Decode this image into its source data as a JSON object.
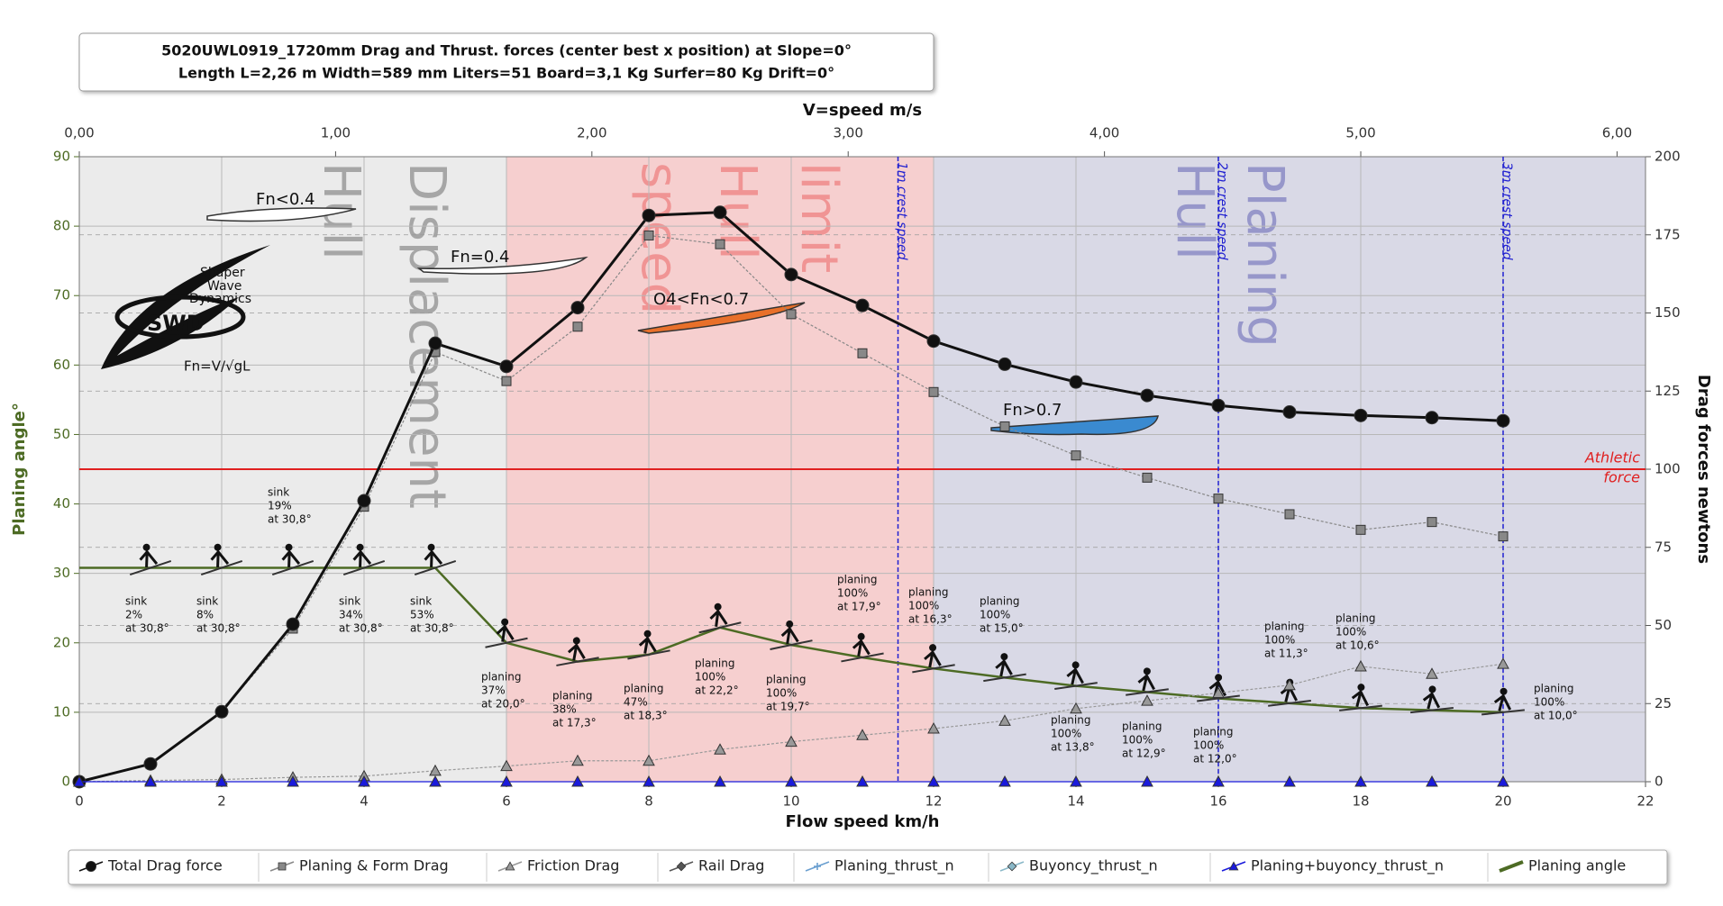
{
  "chart_data": {
    "type": "line",
    "title": "5020UWL0919_1720mm Drag and  Thrust. forces (center best x position) at  Slope=0°",
    "subtitle": "Length L=2,26 m Width=589 mm Liters=51 Board=3,1 Kg Surfer=80 Kg Drift=0°",
    "x_label": "Flow speed km/h",
    "x2_label": "V=speed m/s",
    "y_label": "Planing angle°",
    "y2_label": "Drag forces newtons",
    "xlim": [
      0,
      22
    ],
    "xticks": [
      0,
      2,
      4,
      6,
      8,
      10,
      12,
      14,
      16,
      18,
      20,
      22
    ],
    "x2lim": [
      0,
      6.111
    ],
    "x2ticks": [
      {
        "value": 0,
        "label": "0,00"
      },
      {
        "value": 1,
        "label": "1,00"
      },
      {
        "value": 2,
        "label": "2,00"
      },
      {
        "value": 3,
        "label": "3,00"
      },
      {
        "value": 4,
        "label": "4,00"
      },
      {
        "value": 5,
        "label": "5,00"
      },
      {
        "value": 6,
        "label": "6,00"
      }
    ],
    "ylim": [
      0,
      90
    ],
    "yticks": [
      0,
      10,
      20,
      30,
      40,
      50,
      60,
      70,
      80,
      90
    ],
    "y2lim": [
      0,
      200
    ],
    "y2ticks": [
      0,
      25,
      50,
      75,
      100,
      125,
      150,
      175,
      200
    ],
    "grid": true,
    "x": [
      0,
      1,
      2,
      3,
      4,
      5,
      6,
      7,
      8,
      9,
      10,
      11,
      12,
      13,
      14,
      15,
      16,
      17,
      18,
      19,
      20
    ],
    "series": [
      {
        "name": "Total Drag force",
        "color": "#111111",
        "marker": "circle",
        "axis": "y2",
        "values": [
          0,
          5.7,
          22.4,
          50.4,
          89.9,
          140.3,
          132.9,
          151.7,
          181.2,
          182.2,
          162.3,
          152.4,
          141,
          133.6,
          127.9,
          123.6,
          120.4,
          118.3,
          117.2,
          116.5,
          115.5
        ]
      },
      {
        "name": "Planing & Form Drag",
        "color": "#888888",
        "marker": "square",
        "axis": "y2",
        "values": [
          0,
          5.7,
          22.4,
          49,
          88,
          137.5,
          128.2,
          145.6,
          174.8,
          172,
          149.6,
          137.1,
          124.7,
          113.7,
          104.4,
          97.3,
          90.6,
          85.6,
          80.6,
          83.1,
          78.5
        ]
      },
      {
        "name": "Friction Drag",
        "color": "#999999",
        "marker": "triangle",
        "axis": "y2",
        "values": [
          0,
          0.4,
          0.7,
          1.4,
          1.8,
          3.5,
          5,
          6.7,
          6.7,
          10.3,
          12.8,
          14.9,
          17,
          19.5,
          23.4,
          25.9,
          28.4,
          30.9,
          36.9,
          34.5,
          37.7
        ]
      },
      {
        "name": "Rail Drag",
        "color": "#555555",
        "marker": "diamond",
        "axis": "y2",
        "values": [
          null,
          null,
          null,
          null,
          null,
          null,
          null,
          null,
          null,
          null,
          null,
          null,
          null,
          null,
          null,
          null,
          null,
          null,
          null,
          null,
          null
        ]
      },
      {
        "name": "Planing_thrust_n",
        "color": "#6a9fd0",
        "marker": "cross",
        "axis": "y2",
        "values": [
          null,
          null,
          null,
          null,
          null,
          null,
          null,
          null,
          null,
          null,
          null,
          null,
          null,
          null,
          null,
          null,
          null,
          null,
          null,
          null,
          null
        ]
      },
      {
        "name": "Buyoncy_thrust_n",
        "color": "#8ab8c8",
        "marker": "diamond",
        "axis": "y2",
        "values": [
          null,
          null,
          null,
          null,
          null,
          null,
          null,
          null,
          null,
          null,
          null,
          null,
          null,
          null,
          null,
          null,
          null,
          null,
          null,
          null,
          null
        ]
      },
      {
        "name": "Planing+buyoncy_thrust_n",
        "color": "#1a1adc",
        "marker": "triangle",
        "axis": "y2",
        "values": [
          0,
          0,
          0,
          0,
          0,
          0,
          0,
          0,
          0,
          0,
          0,
          0,
          0,
          0,
          0,
          0,
          0,
          0,
          0,
          0,
          0
        ]
      },
      {
        "name": "Planing angle",
        "color": "#4d6b24",
        "marker": "none",
        "axis": "y",
        "values": [
          30.8,
          30.8,
          30.8,
          30.8,
          30.8,
          30.8,
          20,
          17.3,
          18.3,
          22.2,
          19.7,
          17.9,
          16.3,
          15,
          13.8,
          12.9,
          12,
          11.3,
          10.6,
          10.3,
          10
        ]
      }
    ],
    "regions": [
      {
        "from": 0,
        "to": 6,
        "color": "#ebebeb"
      },
      {
        "from": 6,
        "to": 12,
        "color": "#f6cfcf"
      },
      {
        "from": 12,
        "to": 22,
        "color": "#d9d9e6"
      }
    ],
    "region_labels": [
      "Displacement",
      "Hull",
      "limit",
      "Hull",
      "speed",
      "Planing",
      "Hull"
    ],
    "crest_lines": [
      {
        "x": 11.5,
        "label": "1m crest speed"
      },
      {
        "x": 16,
        "label": "2m crest speed"
      },
      {
        "x": 20,
        "label": "3m crest speed"
      }
    ],
    "athletic_force": {
      "value": 100,
      "lines": [
        "Athletic",
        "force"
      ]
    },
    "board_labels": [
      "Fn<0.4",
      "Fn=0.4",
      "O4<Fn<0.7",
      "Fn>0.7"
    ],
    "logo": [
      "Shaper",
      "Wave",
      "Dynamics",
      "SWD",
      "Fn=V/√gL"
    ],
    "annotations": [
      {
        "x": 1,
        "lines": [
          "sink",
          "2%",
          "at 30,8°"
        ]
      },
      {
        "x": 2,
        "lines": [
          "sink",
          "8%",
          "at 30,8°"
        ]
      },
      {
        "x": 3,
        "lines": [
          "sink",
          "19%",
          "at 30,8°"
        ]
      },
      {
        "x": 4,
        "lines": [
          "sink",
          "34%",
          "at 30,8°"
        ]
      },
      {
        "x": 5,
        "lines": [
          "sink",
          "53%",
          "at 30,8°"
        ]
      },
      {
        "x": 6,
        "lines": [
          "planing",
          "37%",
          "at 20,0°"
        ]
      },
      {
        "x": 7,
        "lines": [
          "planing",
          "38%",
          "at 17,3°"
        ]
      },
      {
        "x": 8,
        "lines": [
          "planing",
          "47%",
          "at 18,3°"
        ]
      },
      {
        "x": 9,
        "lines": [
          "planing",
          "100%",
          "at 22,2°"
        ]
      },
      {
        "x": 10,
        "lines": [
          "planing",
          "100%",
          "at 19,7°"
        ]
      },
      {
        "x": 11,
        "lines": [
          "planing",
          "100%",
          "at 17,9°"
        ]
      },
      {
        "x": 12,
        "lines": [
          "planing",
          "100%",
          "at 16,3°"
        ]
      },
      {
        "x": 13,
        "lines": [
          "planing",
          "100%",
          "at 15,0°"
        ]
      },
      {
        "x": 14,
        "lines": [
          "planing",
          "100%",
          "at 13,8°"
        ]
      },
      {
        "x": 15,
        "lines": [
          "planing",
          "100%",
          "at 12,9°"
        ]
      },
      {
        "x": 16,
        "lines": [
          "planing",
          "100%",
          "at 12,0°"
        ]
      },
      {
        "x": 17,
        "lines": [
          "planing",
          "100%",
          "at 11,3°"
        ]
      },
      {
        "x": 18,
        "lines": [
          "planing",
          "100%",
          "at 10,6°"
        ]
      },
      {
        "x": 20,
        "lines": [
          "planing",
          "100%",
          "at 10,0°"
        ]
      }
    ]
  }
}
